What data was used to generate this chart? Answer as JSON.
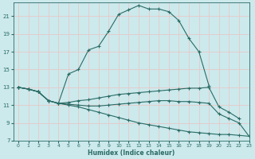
{
  "xlabel": "Humidex (Indice chaleur)",
  "ylabel": "",
  "bg_color": "#cce9ec",
  "grid_color": "#e8c8c8",
  "line_color": "#2a6b65",
  "xlim": [
    -0.5,
    23
  ],
  "ylim": [
    7,
    22.5
  ],
  "yticks": [
    7,
    9,
    11,
    13,
    15,
    17,
    19,
    21
  ],
  "xticks": [
    0,
    1,
    2,
    3,
    4,
    5,
    6,
    7,
    8,
    9,
    10,
    11,
    12,
    13,
    14,
    15,
    16,
    17,
    18,
    19,
    20,
    21,
    22,
    23
  ],
  "curves": [
    {
      "x": [
        0,
        1,
        2,
        3,
        4,
        5,
        6,
        7,
        8,
        9,
        10,
        11,
        12,
        13,
        14,
        15,
        16,
        17,
        18,
        19
      ],
      "y": [
        13.0,
        12.8,
        12.5,
        11.5,
        11.2,
        14.5,
        15.0,
        17.2,
        17.6,
        19.3,
        21.2,
        21.7,
        22.2,
        21.8,
        21.8,
        21.5,
        20.5,
        18.5,
        17.0,
        13.2
      ]
    },
    {
      "x": [
        0,
        1,
        2,
        3,
        4,
        5,
        6,
        7,
        8,
        9,
        10,
        11,
        12,
        13,
        14,
        15,
        16,
        17,
        18,
        19,
        20,
        21,
        22
      ],
      "y": [
        13.0,
        12.8,
        12.5,
        11.5,
        11.2,
        11.3,
        11.5,
        11.6,
        11.8,
        12.0,
        12.2,
        12.3,
        12.4,
        12.5,
        12.6,
        12.7,
        12.8,
        12.9,
        12.9,
        13.0,
        10.8,
        10.2,
        9.5
      ]
    },
    {
      "x": [
        0,
        1,
        2,
        3,
        4,
        5,
        6,
        7,
        8,
        9,
        10,
        11,
        12,
        13,
        14,
        15,
        16,
        17,
        18,
        19,
        20,
        21,
        22,
        23
      ],
      "y": [
        13.0,
        12.8,
        12.5,
        11.5,
        11.2,
        11.1,
        11.0,
        10.9,
        10.9,
        11.0,
        11.1,
        11.2,
        11.3,
        11.4,
        11.5,
        11.5,
        11.4,
        11.4,
        11.3,
        11.2,
        10.0,
        9.5,
        9.0,
        7.5
      ]
    },
    {
      "x": [
        0,
        1,
        2,
        3,
        4,
        5,
        6,
        7,
        8,
        9,
        10,
        11,
        12,
        13,
        14,
        15,
        16,
        17,
        18,
        19,
        20,
        21,
        22,
        23
      ],
      "y": [
        13.0,
        12.8,
        12.5,
        11.5,
        11.2,
        11.0,
        10.8,
        10.5,
        10.2,
        9.9,
        9.6,
        9.3,
        9.0,
        8.8,
        8.6,
        8.4,
        8.2,
        8.0,
        7.9,
        7.8,
        7.7,
        7.7,
        7.6,
        7.5
      ]
    }
  ]
}
